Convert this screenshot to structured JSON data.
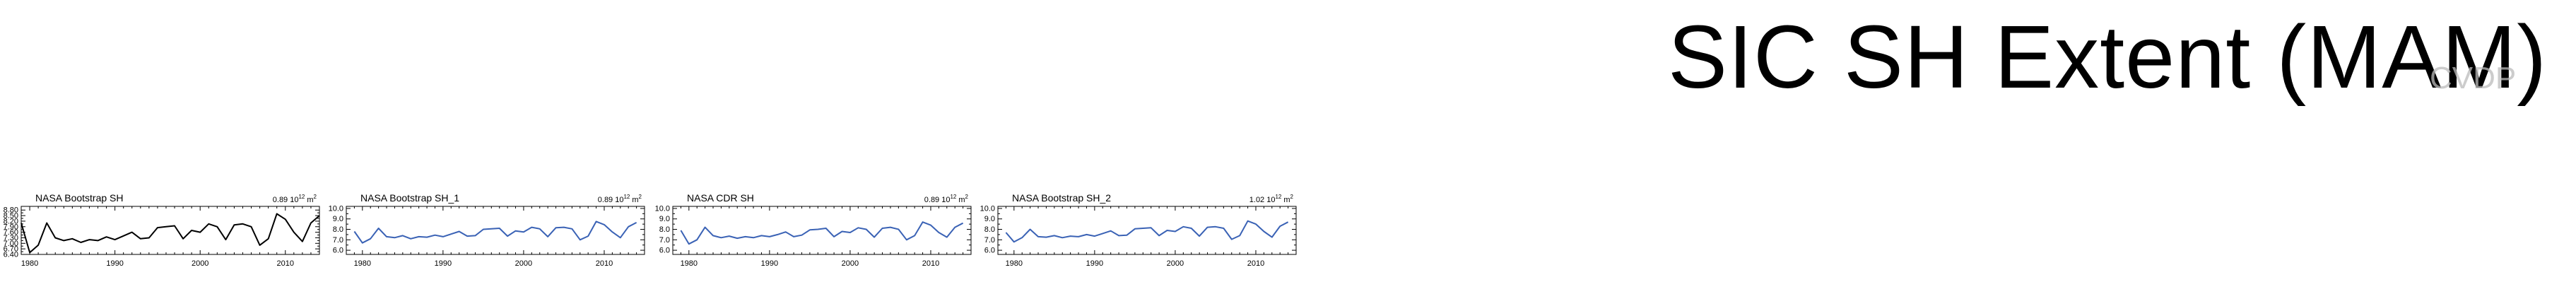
{
  "page": {
    "title": "SIC SH Extent (MAM)",
    "watermark": "CVDP"
  },
  "chart_data": [
    {
      "type": "line",
      "title": "NASA Bootstrap SH",
      "unit_label": "0.89 10",
      "unit_exponent": "12",
      "unit_suffix": "m",
      "unit_suffix_exponent": "2",
      "xlabel": "",
      "ylabel": "",
      "xlim": [
        1979,
        2014
      ],
      "ylim": [
        6.4,
        9.0
      ],
      "x_ticks": [
        1980,
        1990,
        2000,
        2010
      ],
      "y_ticks": [
        6.4,
        6.7,
        7.0,
        7.3,
        7.6,
        7.9,
        8.2,
        8.5,
        8.8
      ],
      "y_tick_labels": [
        "6.40",
        "6.70",
        "7.00",
        "7.30",
        "7.60",
        "7.90",
        "8.20",
        "8.50",
        "8.80"
      ],
      "series": [
        {
          "color": "#000000",
          "x": [
            1979,
            1980,
            1981,
            1982,
            1983,
            1984,
            1985,
            1986,
            1987,
            1988,
            1989,
            1990,
            1991,
            1992,
            1993,
            1994,
            1995,
            1996,
            1997,
            1998,
            1999,
            2000,
            2001,
            2002,
            2003,
            2004,
            2005,
            2006,
            2007,
            2008,
            2009,
            2010,
            2011,
            2012,
            2013,
            2014
          ],
          "values": [
            8.1,
            6.5,
            6.9,
            8.1,
            7.3,
            7.15,
            7.25,
            7.05,
            7.2,
            7.15,
            7.35,
            7.2,
            7.4,
            7.6,
            7.25,
            7.3,
            7.85,
            7.9,
            7.95,
            7.25,
            7.7,
            7.6,
            8.05,
            7.9,
            7.2,
            8.0,
            8.05,
            7.9,
            6.9,
            7.25,
            8.6,
            8.3,
            7.6,
            7.1,
            8.1,
            8.5
          ]
        }
      ]
    },
    {
      "type": "line",
      "title": "NASA Bootstrap SH_1",
      "unit_label": "0.89 10",
      "unit_exponent": "12",
      "unit_suffix": "m",
      "unit_suffix_exponent": "2",
      "xlabel": "",
      "ylabel": "",
      "xlim": [
        1978,
        2015
      ],
      "ylim": [
        5.6,
        10.2
      ],
      "x_ticks": [
        1980,
        1990,
        2000,
        2010
      ],
      "y_ticks": [
        6.0,
        7.0,
        8.0,
        9.0,
        10.0
      ],
      "y_tick_labels": [
        "6.0",
        "7.0",
        "8.0",
        "9.0",
        "10.0"
      ],
      "series": [
        {
          "color": "#3a62b5",
          "x": [
            1979,
            1980,
            1981,
            1982,
            1983,
            1984,
            1985,
            1986,
            1987,
            1988,
            1989,
            1990,
            1991,
            1992,
            1993,
            1994,
            1995,
            1996,
            1997,
            1998,
            1999,
            2000,
            2001,
            2002,
            2003,
            2004,
            2005,
            2006,
            2007,
            2008,
            2009,
            2010,
            2011,
            2012,
            2013,
            2014
          ],
          "values": [
            7.8,
            6.7,
            7.1,
            8.1,
            7.3,
            7.2,
            7.4,
            7.1,
            7.3,
            7.25,
            7.45,
            7.3,
            7.55,
            7.8,
            7.35,
            7.4,
            8.0,
            8.05,
            8.1,
            7.35,
            7.85,
            7.75,
            8.2,
            8.05,
            7.3,
            8.15,
            8.2,
            8.05,
            7.0,
            7.35,
            8.75,
            8.45,
            7.75,
            7.2,
            8.25,
            8.65
          ]
        }
      ]
    },
    {
      "type": "line",
      "title": "NASA CDR SH",
      "unit_label": "0.89 10",
      "unit_exponent": "12",
      "unit_suffix": "m",
      "unit_suffix_exponent": "2",
      "xlabel": "",
      "ylabel": "",
      "xlim": [
        1978,
        2015
      ],
      "ylim": [
        5.6,
        10.2
      ],
      "x_ticks": [
        1980,
        1990,
        2000,
        2010
      ],
      "y_ticks": [
        6.0,
        7.0,
        8.0,
        9.0,
        10.0
      ],
      "y_tick_labels": [
        "6.0",
        "7.0",
        "8.0",
        "9.0",
        "10.0"
      ],
      "series": [
        {
          "color": "#3a62b5",
          "x": [
            1979,
            1980,
            1981,
            1982,
            1983,
            1984,
            1985,
            1986,
            1987,
            1988,
            1989,
            1990,
            1991,
            1992,
            1993,
            1994,
            1995,
            1996,
            1997,
            1998,
            1999,
            2000,
            2001,
            2002,
            2003,
            2004,
            2005,
            2006,
            2007,
            2008,
            2009,
            2010,
            2011,
            2012,
            2013,
            2014
          ],
          "values": [
            7.9,
            6.6,
            7.0,
            8.2,
            7.4,
            7.2,
            7.35,
            7.15,
            7.3,
            7.2,
            7.4,
            7.3,
            7.5,
            7.75,
            7.3,
            7.45,
            7.95,
            8.0,
            8.1,
            7.3,
            7.8,
            7.7,
            8.15,
            8.0,
            7.25,
            8.1,
            8.2,
            8.0,
            7.0,
            7.4,
            8.7,
            8.4,
            7.7,
            7.25,
            8.2,
            8.6
          ]
        }
      ]
    },
    {
      "type": "line",
      "title": "NASA Bootstrap SH_2",
      "unit_label": "1.02 10",
      "unit_exponent": "12",
      "unit_suffix": "m",
      "unit_suffix_exponent": "2",
      "xlabel": "",
      "ylabel": "",
      "xlim": [
        1978,
        2015
      ],
      "ylim": [
        5.6,
        10.2
      ],
      "x_ticks": [
        1980,
        1990,
        2000,
        2010
      ],
      "y_ticks": [
        6.0,
        7.0,
        8.0,
        9.0,
        10.0
      ],
      "y_tick_labels": [
        "6.0",
        "7.0",
        "8.0",
        "9.0",
        "10.0"
      ],
      "series": [
        {
          "color": "#3a62b5",
          "x": [
            1979,
            1980,
            1981,
            1982,
            1983,
            1984,
            1985,
            1986,
            1987,
            1988,
            1989,
            1990,
            1991,
            1992,
            1993,
            1994,
            1995,
            1996,
            1997,
            1998,
            1999,
            2000,
            2001,
            2002,
            2003,
            2004,
            2005,
            2006,
            2007,
            2008,
            2009,
            2010,
            2011,
            2012,
            2013,
            2014
          ],
          "values": [
            7.7,
            6.8,
            7.2,
            8.0,
            7.3,
            7.25,
            7.4,
            7.2,
            7.35,
            7.3,
            7.5,
            7.35,
            7.6,
            7.85,
            7.4,
            7.45,
            8.05,
            8.1,
            8.15,
            7.4,
            7.9,
            7.8,
            8.25,
            8.1,
            7.35,
            8.2,
            8.25,
            8.1,
            7.05,
            7.4,
            8.8,
            8.5,
            7.8,
            7.25,
            8.3,
            8.7
          ]
        }
      ]
    }
  ]
}
